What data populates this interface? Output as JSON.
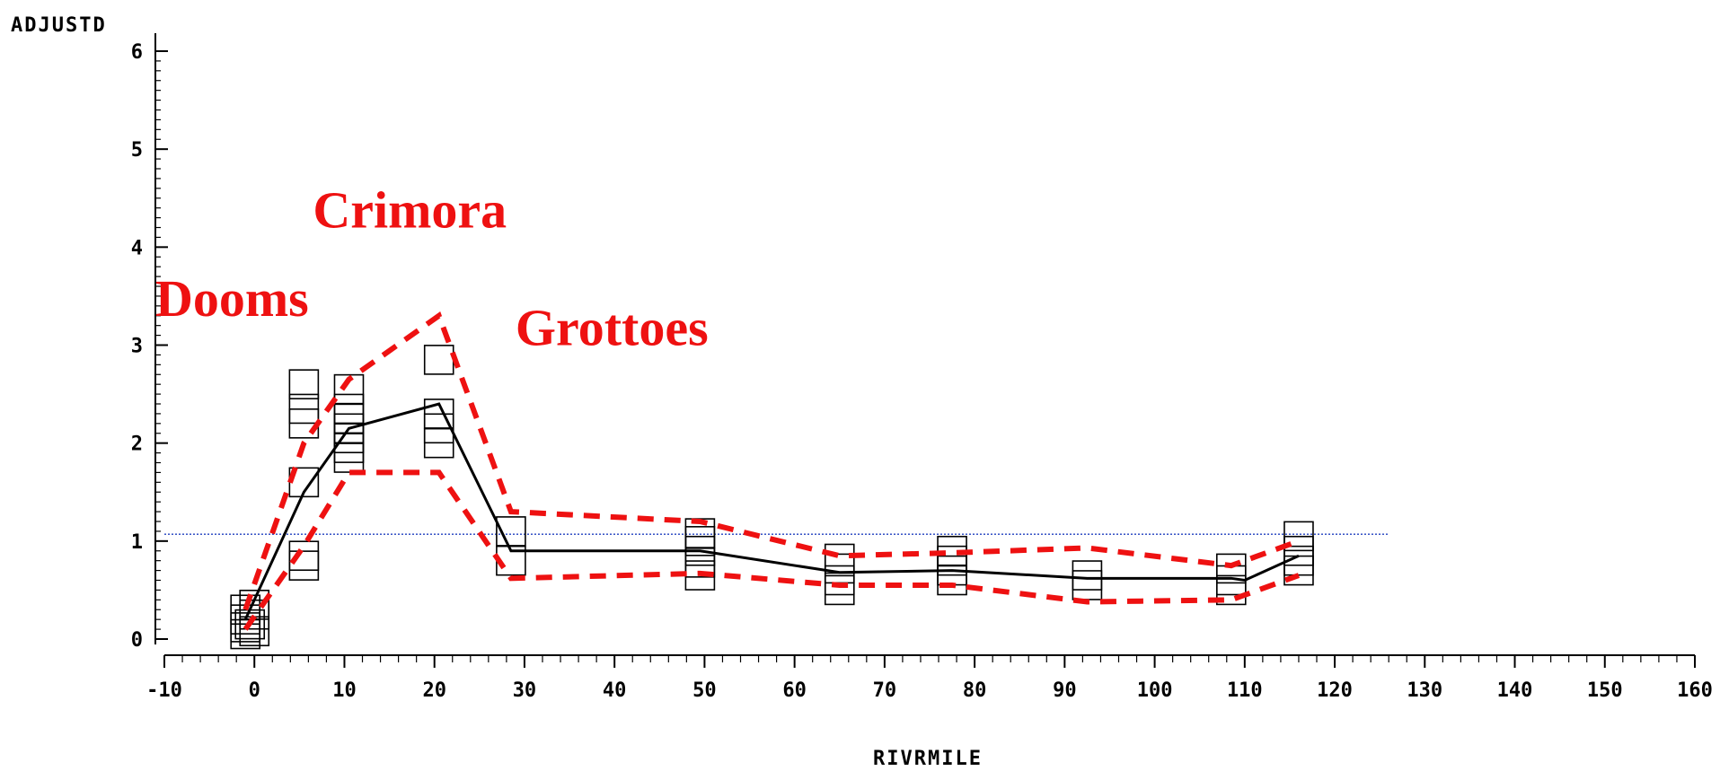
{
  "chart_data": {
    "type": "scatter",
    "title": "",
    "xlabel": "RIVRMILE",
    "ylabel": "ADJUSTD",
    "xlim": [
      -10,
      160
    ],
    "ylim": [
      0,
      6
    ],
    "x_ticks": [
      "-10",
      "0",
      "10",
      "20",
      "30",
      "40",
      "50",
      "60",
      "70",
      "80",
      "90",
      "100",
      "110",
      "120",
      "130",
      "140",
      "150",
      "160"
    ],
    "y_ticks": [
      "0",
      "1",
      "2",
      "3",
      "4",
      "5",
      "6"
    ],
    "grid": false,
    "marker": "square",
    "points": [
      {
        "x": -1,
        "y": 0.05
      },
      {
        "x": -1,
        "y": 0.12
      },
      {
        "x": -1,
        "y": 0.2
      },
      {
        "x": -1,
        "y": 0.3
      },
      {
        "x": 0,
        "y": 0.08
      },
      {
        "x": 0,
        "y": 0.25
      },
      {
        "x": 0,
        "y": 0.35
      },
      {
        "x": -0.5,
        "y": 0.15
      },
      {
        "x": 5.5,
        "y": 0.75
      },
      {
        "x": 5.5,
        "y": 0.85
      },
      {
        "x": 5.5,
        "y": 1.6
      },
      {
        "x": 5.5,
        "y": 2.2
      },
      {
        "x": 5.5,
        "y": 2.35
      },
      {
        "x": 5.5,
        "y": 2.6
      },
      {
        "x": 10.5,
        "y": 1.85
      },
      {
        "x": 10.5,
        "y": 1.95
      },
      {
        "x": 10.5,
        "y": 2.05
      },
      {
        "x": 10.5,
        "y": 2.15
      },
      {
        "x": 10.5,
        "y": 2.25
      },
      {
        "x": 10.5,
        "y": 2.35
      },
      {
        "x": 10.5,
        "y": 2.55
      },
      {
        "x": 20.5,
        "y": 2.0
      },
      {
        "x": 20.5,
        "y": 2.15
      },
      {
        "x": 20.5,
        "y": 2.3
      },
      {
        "x": 20.5,
        "y": 2.85
      },
      {
        "x": 28.5,
        "y": 0.8
      },
      {
        "x": 28.5,
        "y": 1.1
      },
      {
        "x": 49.5,
        "y": 0.65
      },
      {
        "x": 49.5,
        "y": 0.78
      },
      {
        "x": 49.5,
        "y": 0.9
      },
      {
        "x": 49.5,
        "y": 1.0
      },
      {
        "x": 49.5,
        "y": 1.08
      },
      {
        "x": 65,
        "y": 0.5
      },
      {
        "x": 65,
        "y": 0.6
      },
      {
        "x": 65,
        "y": 0.72
      },
      {
        "x": 65,
        "y": 0.82
      },
      {
        "x": 77.5,
        "y": 0.6
      },
      {
        "x": 77.5,
        "y": 0.7
      },
      {
        "x": 77.5,
        "y": 0.8
      },
      {
        "x": 77.5,
        "y": 0.9
      },
      {
        "x": 92.5,
        "y": 0.55
      },
      {
        "x": 92.5,
        "y": 0.65
      },
      {
        "x": 108.5,
        "y": 0.5
      },
      {
        "x": 108.5,
        "y": 0.6
      },
      {
        "x": 108.5,
        "y": 0.72
      },
      {
        "x": 116,
        "y": 0.7
      },
      {
        "x": 116,
        "y": 0.8
      },
      {
        "x": 116,
        "y": 0.9
      },
      {
        "x": 116,
        "y": 1.05
      }
    ],
    "series": [
      {
        "style": "solid-black",
        "x": [
          -1,
          5.5,
          10.5,
          20.5,
          28.5,
          49.5,
          65,
          77.5,
          92.5,
          108.5,
          110,
          116
        ],
        "y": [
          0.2,
          1.5,
          2.15,
          2.4,
          0.9,
          0.9,
          0.68,
          0.7,
          0.62,
          0.62,
          0.6,
          0.85
        ]
      },
      {
        "style": "dashed-red",
        "x": [
          -1,
          5.5,
          10.5,
          20.5,
          28.5,
          49.5,
          65,
          77.5,
          92.5,
          108.5,
          116
        ],
        "y": [
          0.3,
          2.0,
          2.65,
          3.3,
          1.3,
          1.2,
          0.85,
          0.88,
          0.93,
          0.75,
          1.0
        ]
      },
      {
        "style": "dashed-red",
        "x": [
          -1,
          5.5,
          10.5,
          20.5,
          28.5,
          49.5,
          65,
          77.5,
          92.5,
          108.5,
          116
        ],
        "y": [
          0.1,
          0.95,
          1.7,
          1.7,
          0.62,
          0.67,
          0.55,
          0.55,
          0.38,
          0.4,
          0.65
        ]
      }
    ],
    "reference_line": {
      "y": 1.07,
      "x_from": -10,
      "x_to": 126,
      "color": "#1f3fbf"
    },
    "annotations": [
      {
        "text": "Dooms",
        "x": -11,
        "y": 3.3
      },
      {
        "text": "Crimora",
        "x": 6.5,
        "y": 4.2
      },
      {
        "text": "Grottoes",
        "x": 29,
        "y": 3.0
      }
    ],
    "colors": {
      "line": "#000000",
      "band": "#ee1111",
      "annotation": "#ee1111",
      "reference": "#1f3fbf"
    }
  }
}
